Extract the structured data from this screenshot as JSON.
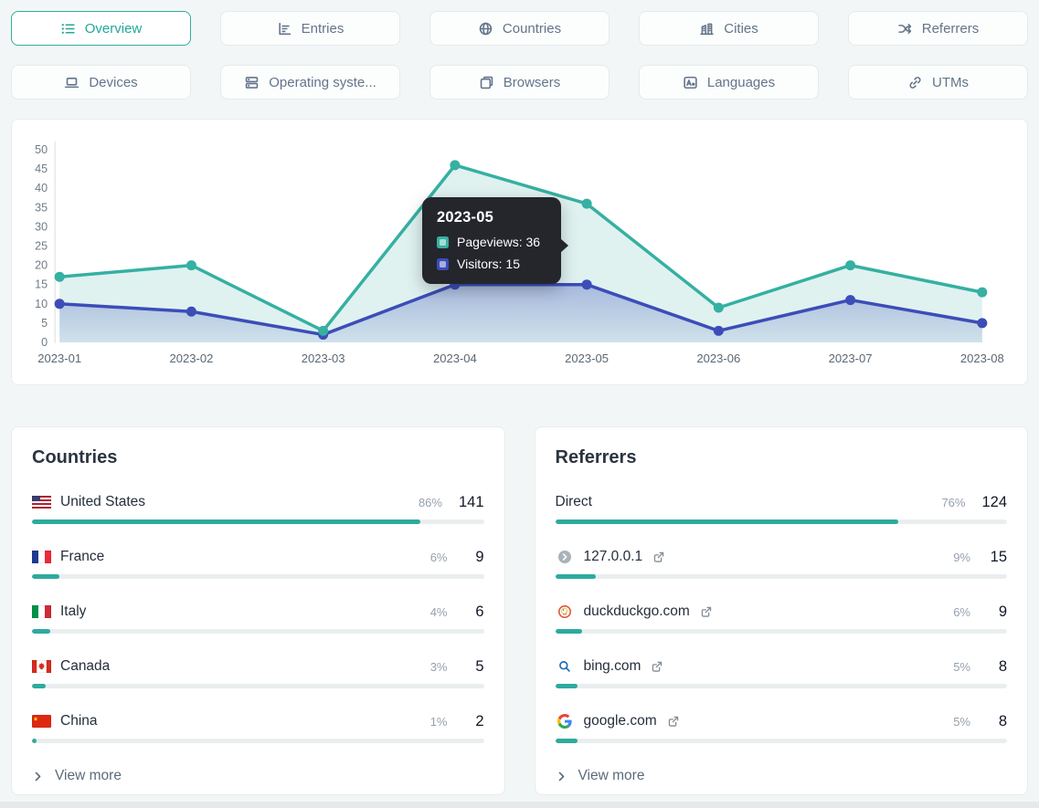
{
  "colors": {
    "accent": "#2eaa9e",
    "pageviews_series": "#35b0a2",
    "visitors_series": "#3c4db8",
    "tooltip_bg": "#24262c",
    "bar_track": "#eaeeef"
  },
  "tabs": {
    "rows": [
      [
        {
          "id": "overview",
          "label": "Overview",
          "icon": "list-icon",
          "active": true
        },
        {
          "id": "entries",
          "label": "Entries",
          "icon": "chart-icon",
          "active": false
        },
        {
          "id": "countries",
          "label": "Countries",
          "icon": "globe-icon",
          "active": false
        },
        {
          "id": "cities",
          "label": "Cities",
          "icon": "buildings-icon",
          "active": false
        },
        {
          "id": "referrers",
          "label": "Referrers",
          "icon": "shuffle-icon",
          "active": false
        }
      ],
      [
        {
          "id": "devices",
          "label": "Devices",
          "icon": "laptop-icon",
          "active": false
        },
        {
          "id": "operating-systems",
          "label": "Operating syste...",
          "icon": "server-icon",
          "active": false
        },
        {
          "id": "browsers",
          "label": "Browsers",
          "icon": "browser-icon",
          "active": false
        },
        {
          "id": "languages",
          "label": "Languages",
          "icon": "translate-icon",
          "active": false
        },
        {
          "id": "utms",
          "label": "UTMs",
          "icon": "link-icon",
          "active": false
        }
      ]
    ]
  },
  "chart_data": {
    "type": "line",
    "x": [
      "2023-01",
      "2023-02",
      "2023-03",
      "2023-04",
      "2023-05",
      "2023-06",
      "2023-07",
      "2023-08"
    ],
    "series": [
      {
        "name": "Pageviews",
        "color": "#35b0a2",
        "values": [
          17,
          20,
          3,
          46,
          36,
          9,
          20,
          13
        ]
      },
      {
        "name": "Visitors",
        "color": "#3c4db8",
        "values": [
          10,
          8,
          2,
          15,
          15,
          3,
          11,
          5
        ]
      }
    ],
    "ylim": [
      0,
      50
    ],
    "ytick_step": 5,
    "grid": false,
    "legend": "tooltip-only",
    "tooltip": {
      "title": "2023-05",
      "anchor_index": 4,
      "items": [
        {
          "series": "Pageviews",
          "value": 36
        },
        {
          "series": "Visitors",
          "value": 15
        }
      ]
    }
  },
  "panels": [
    {
      "title": "Countries",
      "view_more": "View more",
      "rows": [
        {
          "icon": "flag-us",
          "label": "United States",
          "percent": "86%",
          "count": "141",
          "bar_percent": 86,
          "external_link": false
        },
        {
          "icon": "flag-fr",
          "label": "France",
          "percent": "6%",
          "count": "9",
          "bar_percent": 6,
          "external_link": false
        },
        {
          "icon": "flag-it",
          "label": "Italy",
          "percent": "4%",
          "count": "6",
          "bar_percent": 4,
          "external_link": false
        },
        {
          "icon": "flag-ca",
          "label": "Canada",
          "percent": "3%",
          "count": "5",
          "bar_percent": 3,
          "external_link": false
        },
        {
          "icon": "flag-cn",
          "label": "China",
          "percent": "1%",
          "count": "2",
          "bar_percent": 1,
          "external_link": false
        }
      ]
    },
    {
      "title": "Referrers",
      "view_more": "View more",
      "rows": [
        {
          "icon": "",
          "label": "Direct",
          "percent": "76%",
          "count": "124",
          "bar_percent": 76,
          "external_link": false
        },
        {
          "icon": "circle-chevron-favicon",
          "label": "127.0.0.1",
          "percent": "9%",
          "count": "15",
          "bar_percent": 9,
          "external_link": true
        },
        {
          "icon": "duckduckgo-favicon",
          "label": "duckduckgo.com",
          "percent": "6%",
          "count": "9",
          "bar_percent": 6,
          "external_link": true
        },
        {
          "icon": "bing-favicon",
          "label": "bing.com",
          "percent": "5%",
          "count": "8",
          "bar_percent": 5,
          "external_link": true
        },
        {
          "icon": "google-favicon",
          "label": "google.com",
          "percent": "5%",
          "count": "8",
          "bar_percent": 5,
          "external_link": true
        }
      ]
    }
  ]
}
